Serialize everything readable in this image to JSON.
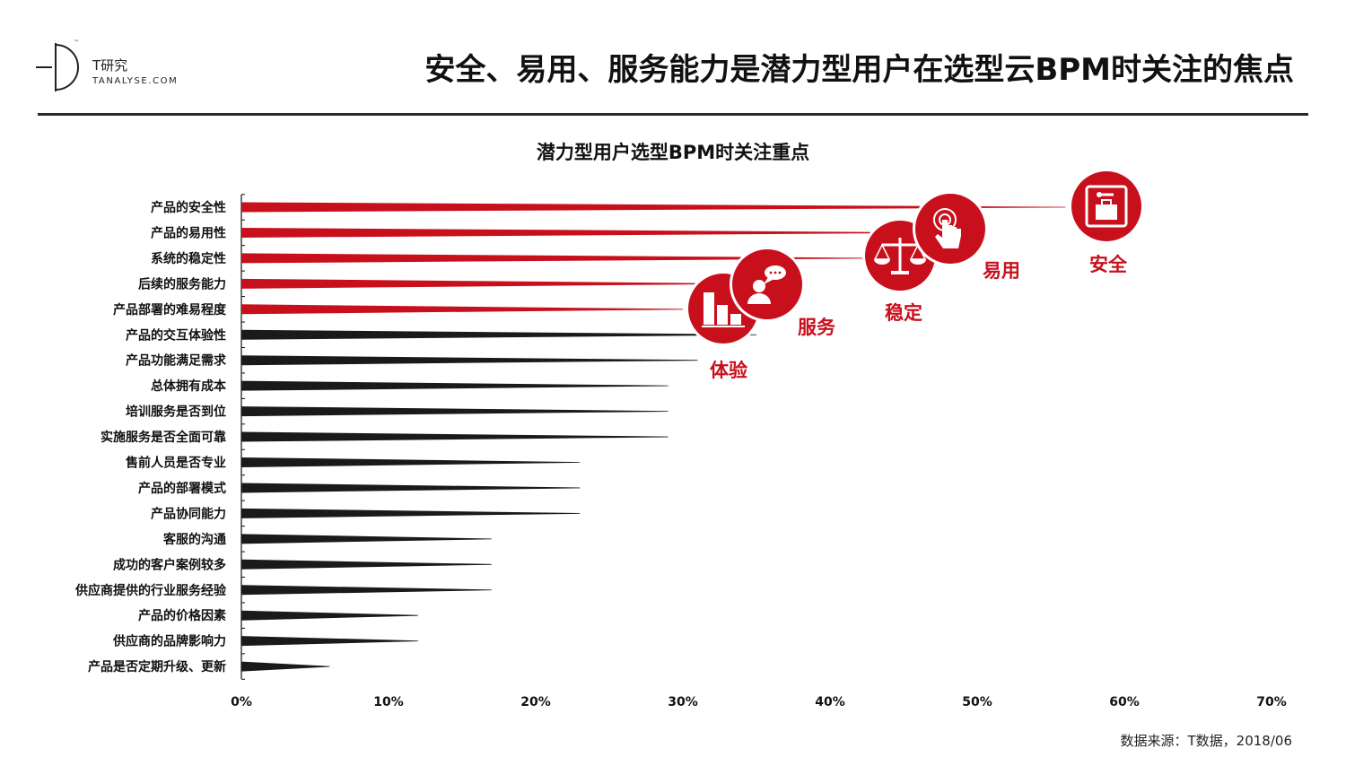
{
  "brand": {
    "name": "T研究",
    "site": "TANALYSE.COM",
    "tm": "™"
  },
  "page_title": "安全、易用、服务能力是潜力型用户在选型云BPM时关注的焦点",
  "source": "数据来源：T数据，2018/06",
  "colors": {
    "red": "#c8101d",
    "black": "#1a1a1a",
    "accent": "#c8101d"
  },
  "chart_data": {
    "type": "bar",
    "orientation": "horizontal",
    "title": "潜力型用户选型BPM时关注重点",
    "categories": [
      "产品的安全性",
      "产品的易用性",
      "系统的稳定性",
      "后续的服务能力",
      "产品部署的难易程度",
      "产品的交互体验性",
      "产品功能满足需求",
      "总体拥有成本",
      "培训服务是否到位",
      "实施服务是否全面可靠",
      "售前人员是否专业",
      "产品的部署模式",
      "产品协同能力",
      "客服的沟通",
      "成功的客户案例较多",
      "供应商提供的行业服务经验",
      "产品的价格因素",
      "供应商的品牌影响力",
      "产品是否定期升级、更新"
    ],
    "values": [
      56,
      46,
      43,
      33,
      30,
      35,
      31,
      29,
      29,
      29,
      23,
      23,
      23,
      17,
      17,
      17,
      12,
      12,
      6
    ],
    "highlight": [
      true,
      true,
      true,
      true,
      true,
      false,
      false,
      false,
      false,
      false,
      false,
      false,
      false,
      false,
      false,
      false,
      false,
      false,
      false
    ],
    "xlim": [
      0,
      70
    ],
    "xticks": [
      "0%",
      "10%",
      "20%",
      "30%",
      "40%",
      "50%",
      "60%",
      "70%"
    ],
    "grid": false,
    "callouts": [
      {
        "label": "安全",
        "icon": "luggage-security-icon"
      },
      {
        "label": "易用",
        "icon": "touch-finger-icon"
      },
      {
        "label": "稳定",
        "icon": "balance-scale-icon"
      },
      {
        "label": "服务",
        "icon": "customer-service-chat-icon"
      },
      {
        "label": "体验",
        "icon": "bar-blocks-icon"
      }
    ]
  }
}
